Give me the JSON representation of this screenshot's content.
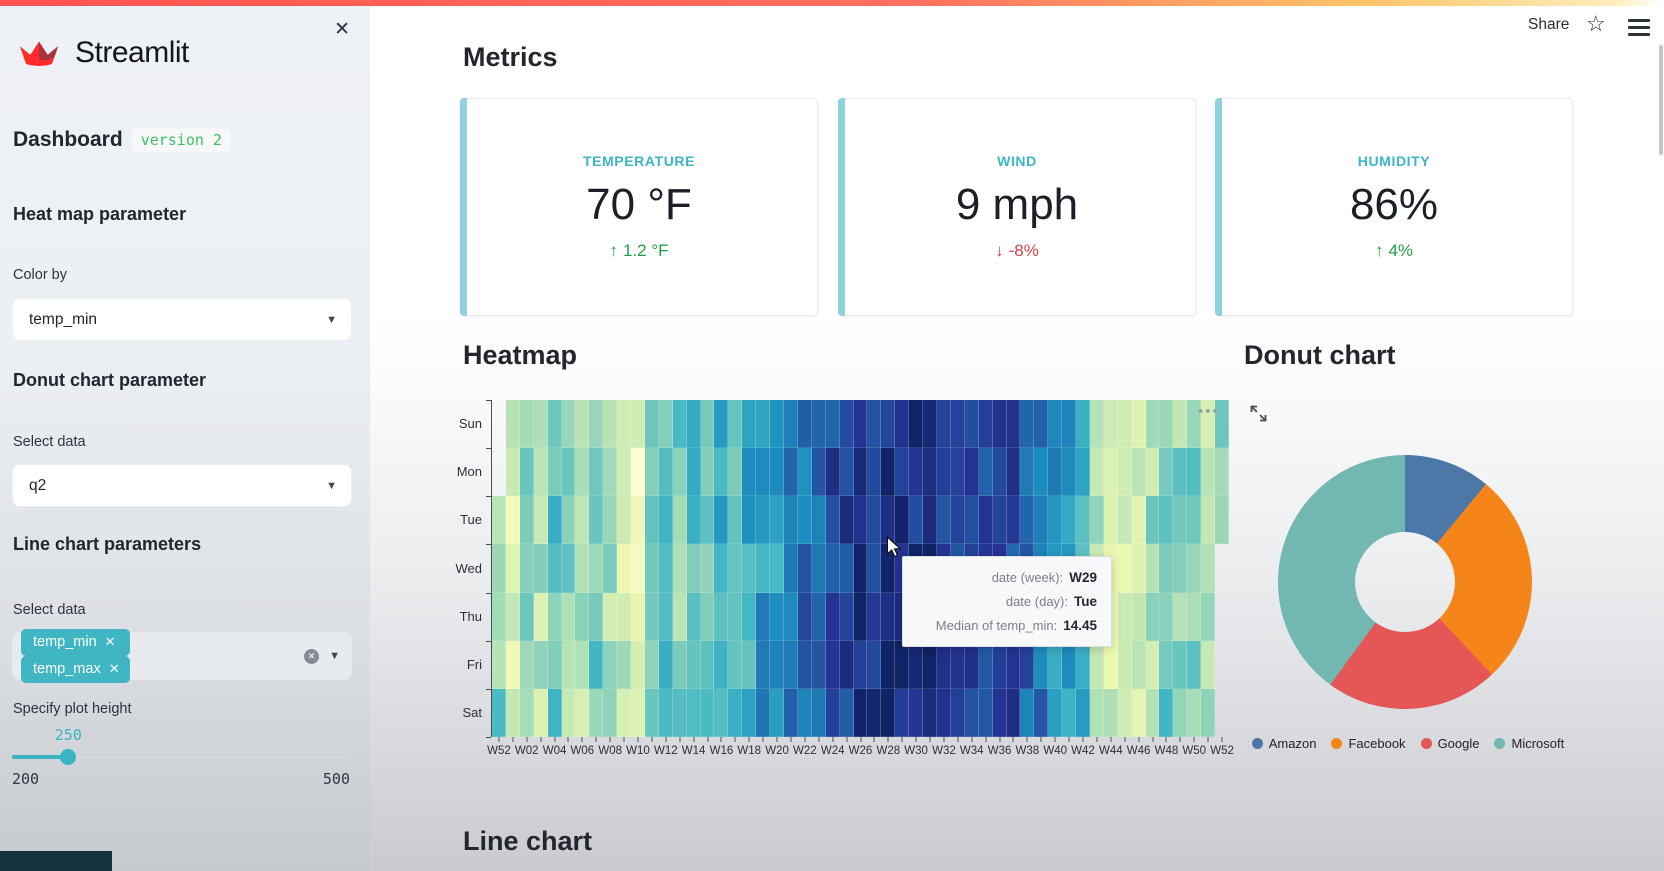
{
  "window": {
    "share_label": "Share"
  },
  "sidebar": {
    "logo_text": "Streamlit",
    "title": "Dashboard",
    "badge": "version 2",
    "close_glyph": "✕",
    "heatmap_params": {
      "heading": "Heat map parameter",
      "color_by_label": "Color by",
      "color_by_value": "temp_min"
    },
    "donut_params": {
      "heading": "Donut chart parameter",
      "select_label": "Select data",
      "select_value": "q2"
    },
    "line_params": {
      "heading": "Line chart parameters",
      "select_label": "Select data",
      "selected": [
        "temp_min",
        "temp_max"
      ],
      "plot_height": {
        "label": "Specify plot height",
        "value": 250,
        "min": 200,
        "max": 500
      }
    }
  },
  "metrics": {
    "heading": "Metrics",
    "cards": [
      {
        "label": "TEMPERATURE",
        "value": "70 °F",
        "delta": "1.2 °F",
        "direction": "up"
      },
      {
        "label": "WIND",
        "value": "9 mph",
        "delta": "-8%",
        "direction": "down"
      },
      {
        "label": "HUMIDITY",
        "value": "86%",
        "delta": "4%",
        "direction": "up"
      }
    ]
  },
  "sections": {
    "heatmap_heading": "Heatmap",
    "donut_heading": "Donut chart",
    "line_heading": "Line chart"
  },
  "tooltip": {
    "rows": [
      {
        "label": "date (week):",
        "value": "W29"
      },
      {
        "label": "date (day):",
        "value": "Tue"
      },
      {
        "label": "Median of temp_min:",
        "value": "14.45"
      }
    ]
  },
  "chart_data": [
    {
      "type": "heatmap",
      "title": "Heatmap",
      "x_tick_labels": [
        "W52",
        "W02",
        "W04",
        "W06",
        "W08",
        "W10",
        "W12",
        "W14",
        "W16",
        "W18",
        "W20",
        "W22",
        "W24",
        "W26",
        "W28",
        "W30",
        "W32",
        "W34",
        "W36",
        "W38",
        "W40",
        "W42",
        "W44",
        "W46",
        "W48",
        "W50",
        "W52"
      ],
      "y_labels": [
        "Sun",
        "Mon",
        "Tue",
        "Wed",
        "Thu",
        "Fri",
        "Sat"
      ],
      "weeks": 53,
      "week_median_temp_min": [
        6.0,
        3.0,
        6.5,
        4.5,
        7.0,
        5.5,
        4.0,
        6.5,
        5.0,
        3.5,
        2.0,
        5.5,
        7.0,
        6.0,
        7.5,
        6.5,
        8.0,
        7.0,
        8.5,
        9.5,
        9.0,
        10.5,
        11.5,
        12.0,
        13.0,
        13.5,
        14.0,
        14.2,
        14.3,
        14.45,
        14.5,
        14.3,
        14.0,
        13.6,
        13.8,
        13.2,
        12.5,
        12.8,
        11.8,
        11.0,
        10.0,
        9.0,
        8.5,
        5.5,
        3.0,
        2.5,
        3.5,
        5.0,
        6.5,
        5.5,
        6.0,
        4.5,
        5.5
      ],
      "missing_cells": [
        [
          0,
          0
        ],
        [
          0,
          1
        ],
        [
          52,
          3
        ],
        [
          52,
          4
        ],
        [
          52,
          5
        ],
        [
          52,
          6
        ]
      ],
      "value_range": [
        0,
        16
      ],
      "colormap": "YlGnBu",
      "hovered_cell": {
        "week": "W29",
        "day": "Tue",
        "median_temp_min": 14.45
      },
      "legend_position": "none",
      "grid": false
    },
    {
      "type": "donut",
      "title": "Donut chart",
      "labels": [
        "Amazon",
        "Facebook",
        "Google",
        "Microsoft"
      ],
      "values": [
        11,
        27,
        22,
        40
      ],
      "colors": [
        "#4c78a8",
        "#f58518",
        "#e45756",
        "#72b7b2"
      ],
      "legend_position": "bottom"
    }
  ],
  "colors": {
    "accent": "#3ab3c3",
    "accent_light": "#8fd2de",
    "positive": "#1fa048",
    "negative": "#cf4444",
    "badge_green": "#3cbf60",
    "chip": "#40b5c4"
  }
}
